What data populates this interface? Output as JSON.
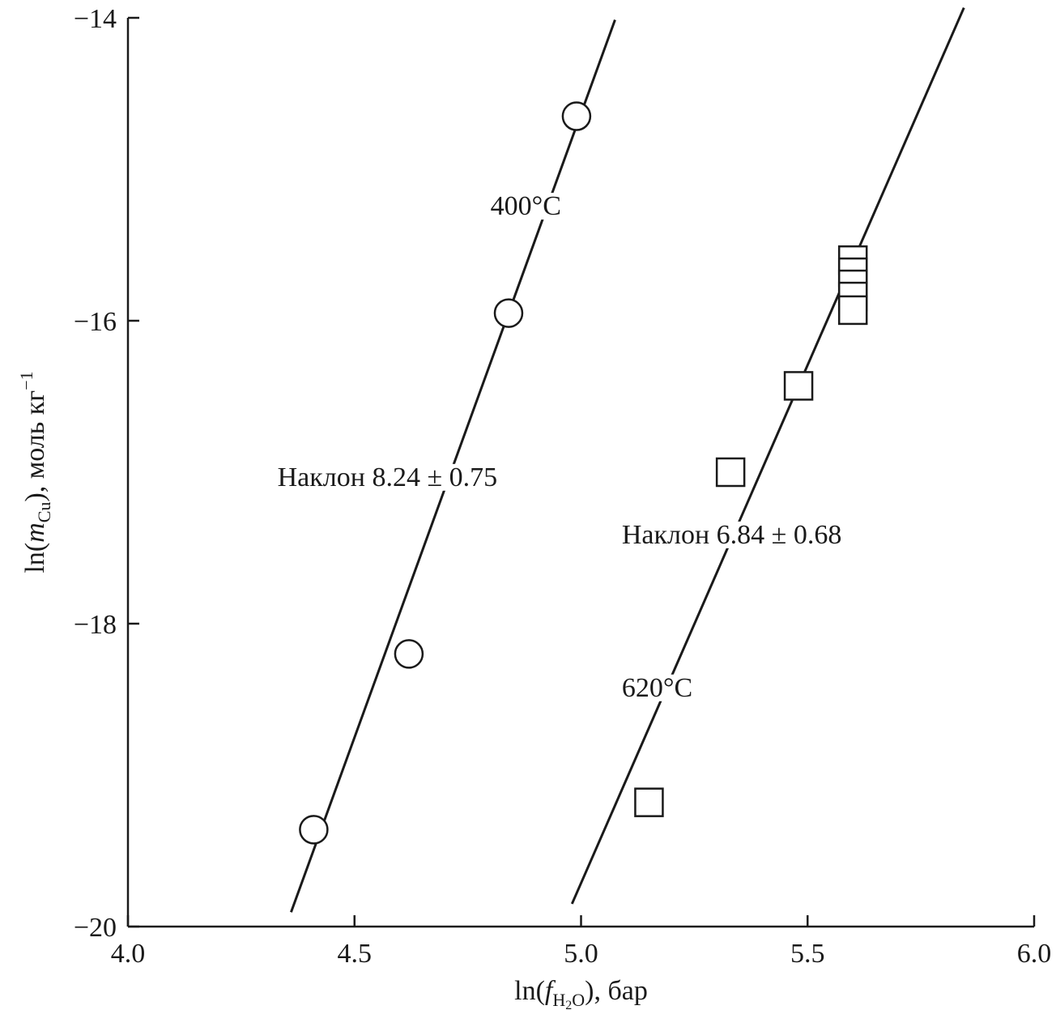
{
  "chart_data": {
    "type": "scatter",
    "x_axis": {
      "label_prefix": "ln(",
      "label_var": "f",
      "label_sub": "H",
      "label_sub2": "2",
      "label_sub3": "O",
      "label_suffix": "), бар",
      "range": [
        4.0,
        6.0
      ],
      "ticks": [
        4.0,
        4.5,
        5.0,
        5.5,
        6.0
      ],
      "tick_labels": [
        "4.0",
        "4.5",
        "5.0",
        "5.5",
        "6.0"
      ]
    },
    "y_axis": {
      "label_prefix": "ln(",
      "label_var": "m",
      "label_sub": "Cu",
      "label_suffix": "), моль кг",
      "label_sup": "−1",
      "range": [
        -20,
        -14
      ],
      "ticks": [
        -20,
        -18,
        -16,
        -14
      ],
      "tick_labels": [
        "−20",
        "−18",
        "−16",
        "−14"
      ]
    },
    "series": [
      {
        "name": "400°C",
        "marker": "circle",
        "points": [
          {
            "x": 4.41,
            "y": -19.36
          },
          {
            "x": 4.62,
            "y": -18.2
          },
          {
            "x": 4.84,
            "y": -15.95
          },
          {
            "x": 4.99,
            "y": -14.65
          }
        ],
        "fit_line": {
          "x1": 4.36,
          "x2": 5.075
        },
        "fit_slope": 8.24,
        "fit_anchor": {
          "x": 4.84,
          "y": -15.95
        },
        "slope_label": "Наклон 8.24 ± 0.75"
      },
      {
        "name": "620°C",
        "marker": "square",
        "points": [
          {
            "x": 5.15,
            "y": -19.18
          },
          {
            "x": 5.33,
            "y": -17.0
          },
          {
            "x": 5.48,
            "y": -16.43
          },
          {
            "x": 5.6,
            "y": -15.6
          },
          {
            "x": 5.6,
            "y": -15.68
          },
          {
            "x": 5.6,
            "y": -15.76
          },
          {
            "x": 5.6,
            "y": -15.84
          },
          {
            "x": 5.6,
            "y": -15.93
          }
        ],
        "fit_line": {
          "x1": 4.98,
          "x2": 5.845
        },
        "fit_slope": 6.84,
        "fit_anchor": {
          "x": 5.48,
          "y": -16.43
        },
        "slope_label": "Наклон 6.84 ± 0.68"
      }
    ],
    "annotations": [
      {
        "text": "400°C",
        "anchor_x": 4.8,
        "anchor_y": -15.3
      },
      {
        "text": "Наклон 8.24 ± 0.75",
        "anchor_x": 4.33,
        "anchor_y": -17.09
      },
      {
        "text": "Наклон 6.84 ± 0.68",
        "anchor_x": 5.09,
        "anchor_y": -17.47
      },
      {
        "text": "620°C",
        "anchor_x": 5.09,
        "anchor_y": -18.48
      }
    ],
    "grid": false,
    "legend": "none"
  }
}
